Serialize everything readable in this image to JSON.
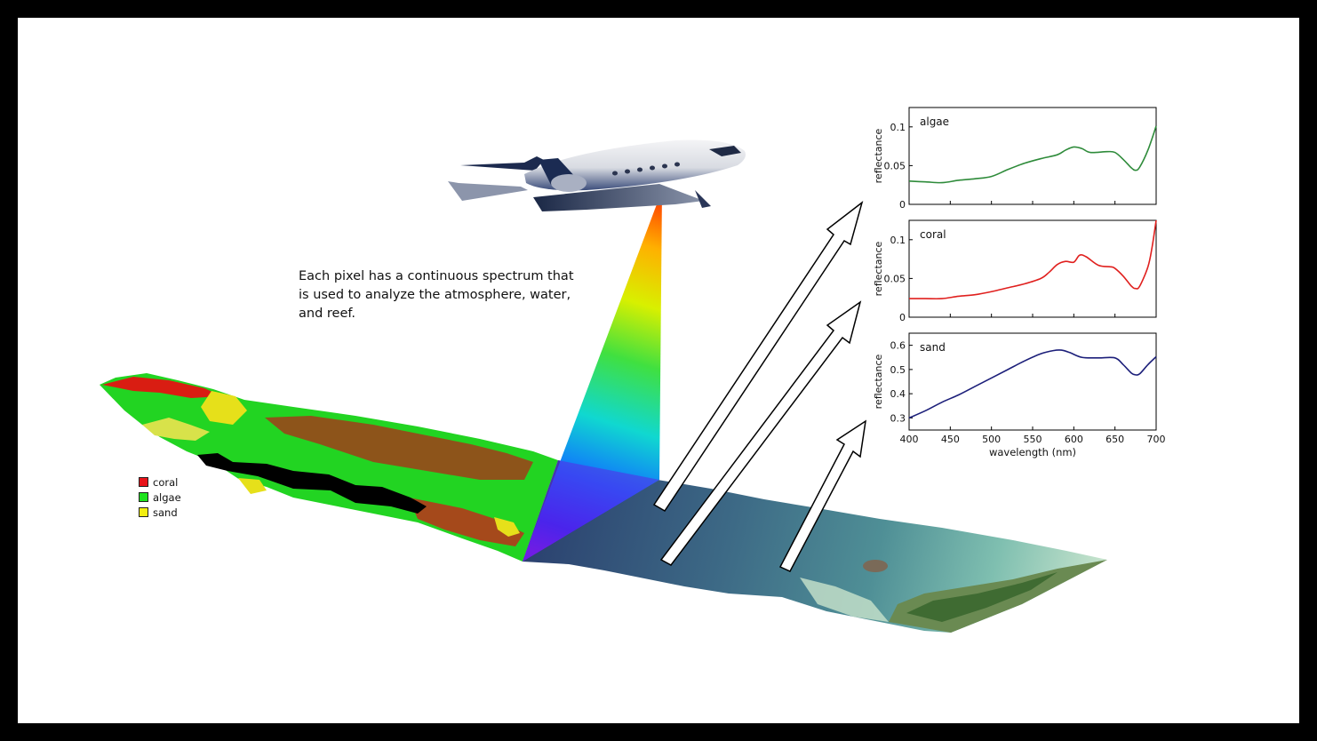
{
  "caption": "Each pixel has a continuous spectrum that is used to analyze the atmosphere, water, and reef.",
  "legend": [
    {
      "label": "coral",
      "color": "#e8141a"
    },
    {
      "label": "algae",
      "color": "#1ee31e"
    },
    {
      "label": "sand",
      "color": "#f2ee11"
    }
  ],
  "chart_data": [
    {
      "type": "line",
      "annotation": "algae",
      "ylabel": "reflectance",
      "xlim": [
        400,
        700
      ],
      "ylim": [
        0,
        0.125
      ],
      "yticks": [
        "0",
        "0.05",
        "0.1"
      ],
      "ytick_values": [
        0,
        0.05,
        0.1
      ],
      "xticks": [
        400,
        450,
        500,
        550,
        600,
        650,
        700
      ],
      "color": "#2e8b3a",
      "series": [
        {
          "x": [
            400,
            420,
            440,
            460,
            480,
            500,
            520,
            540,
            560,
            580,
            590,
            600,
            610,
            620,
            640,
            650,
            660,
            670,
            675,
            680,
            690,
            700
          ],
          "y": [
            0.03,
            0.029,
            0.028,
            0.031,
            0.033,
            0.036,
            0.045,
            0.053,
            0.059,
            0.064,
            0.07,
            0.074,
            0.072,
            0.067,
            0.068,
            0.067,
            0.058,
            0.047,
            0.044,
            0.048,
            0.07,
            0.101
          ]
        }
      ]
    },
    {
      "type": "line",
      "annotation": "coral",
      "ylabel": "reflectance",
      "xlim": [
        400,
        700
      ],
      "ylim": [
        0,
        0.125
      ],
      "yticks": [
        "0",
        "0.05",
        "0.1"
      ],
      "ytick_values": [
        0,
        0.05,
        0.1
      ],
      "xticks": [
        400,
        450,
        500,
        550,
        600,
        650,
        700
      ],
      "color": "#e0201e",
      "series": [
        {
          "x": [
            400,
            420,
            440,
            460,
            480,
            500,
            520,
            540,
            560,
            570,
            580,
            590,
            600,
            607,
            615,
            630,
            645,
            650,
            660,
            670,
            675,
            680,
            690,
            695,
            700
          ],
          "y": [
            0.024,
            0.024,
            0.024,
            0.027,
            0.029,
            0.033,
            0.038,
            0.043,
            0.05,
            0.058,
            0.068,
            0.072,
            0.071,
            0.08,
            0.078,
            0.067,
            0.065,
            0.063,
            0.053,
            0.04,
            0.037,
            0.04,
            0.065,
            0.09,
            0.125
          ]
        }
      ]
    },
    {
      "type": "line",
      "annotation": "sand",
      "ylabel": "reflectance",
      "xlabel": "wavelength (nm)",
      "xlim": [
        400,
        700
      ],
      "ylim": [
        0.25,
        0.65
      ],
      "yticks": [
        "0.3",
        "0.4",
        "0.5",
        "0.6"
      ],
      "ytick_values": [
        0.3,
        0.4,
        0.5,
        0.6
      ],
      "xticks": [
        400,
        450,
        500,
        550,
        600,
        650,
        700
      ],
      "color": "#1c1f7a",
      "series": [
        {
          "x": [
            400,
            420,
            440,
            460,
            480,
            500,
            520,
            540,
            560,
            575,
            585,
            595,
            610,
            630,
            650,
            660,
            670,
            675,
            680,
            690,
            700
          ],
          "y": [
            0.3,
            0.33,
            0.365,
            0.395,
            0.43,
            0.465,
            0.5,
            0.535,
            0.565,
            0.578,
            0.58,
            0.57,
            0.55,
            0.548,
            0.548,
            0.52,
            0.485,
            0.478,
            0.482,
            0.52,
            0.553
          ]
        }
      ]
    }
  ]
}
